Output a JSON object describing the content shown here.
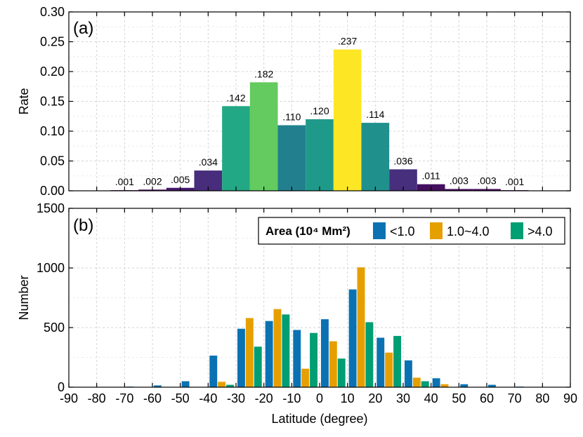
{
  "chart_data": [
    {
      "panel": "a",
      "type": "bar",
      "panel_label": "(a)",
      "ylabel": "Rate",
      "ylim": [
        0,
        0.3
      ],
      "yticks": [
        "0.00",
        "0.05",
        "0.10",
        "0.15",
        "0.20",
        "0.25",
        "0.30"
      ],
      "xlim": [
        -90,
        90
      ],
      "bin_width": 10,
      "grid": true,
      "colormap": "viridis (color encodes rate)",
      "bars": [
        {
          "x": -70,
          "value": 0.001,
          "label": ".001",
          "color": "#440154"
        },
        {
          "x": -60,
          "value": 0.002,
          "label": ".002",
          "color": "#450a5c"
        },
        {
          "x": -50,
          "value": 0.005,
          "label": ".005",
          "color": "#47196e"
        },
        {
          "x": -40,
          "value": 0.034,
          "label": ".034",
          "color": "#472d7b"
        },
        {
          "x": -30,
          "value": 0.142,
          "label": ".142",
          "color": "#22a884"
        },
        {
          "x": -20,
          "value": 0.182,
          "label": ".182",
          "color": "#63cb5f"
        },
        {
          "x": -10,
          "value": 0.11,
          "label": ".110",
          "color": "#22808e"
        },
        {
          "x": 0,
          "value": 0.12,
          "label": ".120",
          "color": "#1f9a8a"
        },
        {
          "x": 10,
          "value": 0.237,
          "label": ".237",
          "color": "#fde725"
        },
        {
          "x": 20,
          "value": 0.114,
          "label": ".114",
          "color": "#20908d"
        },
        {
          "x": 30,
          "value": 0.036,
          "label": ".036",
          "color": "#472f7d"
        },
        {
          "x": 40,
          "value": 0.011,
          "label": ".011",
          "color": "#440f5f"
        },
        {
          "x": 50,
          "value": 0.003,
          "label": ".003",
          "color": "#460a5d"
        },
        {
          "x": 60,
          "value": 0.003,
          "label": ".003",
          "color": "#460a5d"
        },
        {
          "x": 70,
          "value": 0.001,
          "label": ".001",
          "color": "#440154"
        }
      ]
    },
    {
      "panel": "b",
      "type": "bar",
      "panel_label": "(b)",
      "ylabel": "Number",
      "xlabel": "Latitude (degree)",
      "ylim": [
        0,
        1500
      ],
      "yticks": [
        "0",
        "500",
        "1000",
        "1500"
      ],
      "xlim": [
        -90,
        90
      ],
      "xticks": [
        "-90",
        "-80",
        "-70",
        "-60",
        "-50",
        "-40",
        "-30",
        "-20",
        "-10",
        "0",
        "10",
        "20",
        "30",
        "40",
        "50",
        "60",
        "70",
        "80",
        "90"
      ],
      "bin_width": 10,
      "grid": true,
      "legend": {
        "title": "Area (10⁴ Mm²)",
        "placement": "top-right",
        "entries": [
          "<1.0",
          "1.0~4.0",
          ">4.0"
        ]
      },
      "bin_starts": [
        -80,
        -70,
        -60,
        -50,
        -40,
        -30,
        -20,
        -10,
        0,
        10,
        20,
        30,
        40,
        50,
        60,
        70
      ],
      "series": [
        {
          "name": "<1.0",
          "color": "#0a72b3",
          "values": [
            0,
            5,
            15,
            50,
            265,
            490,
            555,
            480,
            570,
            820,
            415,
            225,
            75,
            25,
            20,
            5
          ]
        },
        {
          "name": "1.0~4.0",
          "color": "#e69f00",
          "values": [
            0,
            0,
            0,
            0,
            45,
            580,
            655,
            155,
            385,
            1005,
            290,
            80,
            25,
            0,
            0,
            0
          ]
        },
        {
          "name": ">4.0",
          "color": "#009e73",
          "values": [
            0,
            0,
            0,
            0,
            20,
            340,
            610,
            455,
            240,
            545,
            430,
            50,
            0,
            0,
            0,
            0
          ]
        }
      ]
    }
  ]
}
